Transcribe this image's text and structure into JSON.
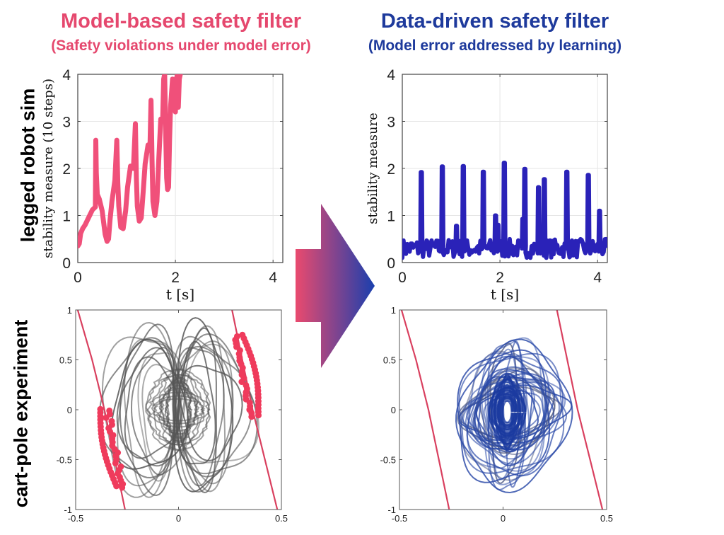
{
  "header": {
    "left_title": "Model-based safety filter",
    "left_subtitle": "(Safety violations under model error)",
    "right_title": "Data-driven safety filter",
    "right_subtitle": "(Model error addressed by learning)"
  },
  "row_labels": {
    "top": "legged robot sim",
    "bottom": "cart-pole experiment"
  },
  "colors": {
    "model_based": "#e5486e",
    "data_driven": "#1e3a9c",
    "blue_line": "#2a22b8",
    "trajectory_gray": "#555555",
    "trajectory_blue": "#2b4aa8",
    "boundary": "#d9405f",
    "violation_marker": "#ef3b5c",
    "arrow_start": "#ea4a6e",
    "arrow_end": "#1a3fae"
  },
  "arrow": {
    "icon": "gradient-right-arrow-icon"
  },
  "chart_data": [
    {
      "id": "legged-model-based",
      "type": "line",
      "title": "",
      "xlabel": "t [s]",
      "ylabel": "stability measure (10 steps)",
      "xlim": [
        0,
        4.2
      ],
      "ylim": [
        0,
        4
      ],
      "xticks": [
        0,
        2,
        4
      ],
      "yticks": [
        0,
        1,
        2,
        3,
        4
      ],
      "grid": true,
      "series": [
        {
          "name": "model-based",
          "x": [
            0.0,
            0.03,
            0.06,
            0.1,
            0.15,
            0.22,
            0.3,
            0.36,
            0.37,
            0.38,
            0.4,
            0.44,
            0.5,
            0.56,
            0.6,
            0.63,
            0.66,
            0.7,
            0.76,
            0.8,
            0.82,
            0.84,
            0.88,
            0.93,
            0.98,
            1.02,
            1.08,
            1.14,
            1.18,
            1.2,
            1.22,
            1.26,
            1.3,
            1.34,
            1.38,
            1.44,
            1.48,
            1.5,
            1.52,
            1.54,
            1.58,
            1.62,
            1.66,
            1.7,
            1.74,
            1.76,
            1.78,
            1.8,
            1.82,
            1.84,
            1.86,
            1.88,
            1.9,
            1.94,
            1.97,
            2.0,
            2.02,
            2.04,
            2.06,
            2.08,
            2.1
          ],
          "y": [
            0.35,
            0.4,
            0.62,
            0.72,
            0.8,
            0.95,
            1.12,
            1.18,
            2.6,
            1.9,
            1.45,
            1.35,
            1.1,
            0.6,
            0.45,
            0.5,
            0.9,
            1.3,
            1.75,
            2.6,
            1.7,
            1.2,
            0.75,
            0.72,
            1.1,
            1.6,
            2.05,
            2.0,
            2.95,
            1.8,
            1.2,
            0.88,
            0.95,
            1.5,
            2.1,
            2.5,
            2.5,
            3.45,
            2.2,
            1.3,
            1.0,
            1.3,
            2.2,
            3.05,
            3.05,
            3.9,
            4.0,
            2.8,
            1.8,
            1.55,
            1.6,
            2.6,
            3.3,
            3.9,
            3.3,
            3.2,
            3.9,
            4.0,
            3.3,
            3.9,
            4.0
          ]
        }
      ]
    },
    {
      "id": "legged-data-driven",
      "type": "line",
      "title": "",
      "xlabel": "t [s]",
      "ylabel": "stability measure",
      "xlim": [
        0,
        4.2
      ],
      "ylim": [
        0,
        4
      ],
      "xticks": [
        0,
        2,
        4
      ],
      "yticks": [
        0,
        1,
        2,
        3,
        4
      ],
      "grid": true,
      "spikes": [
        {
          "t": 0.38,
          "peak": 1.92
        },
        {
          "t": 0.81,
          "peak": 2.04
        },
        {
          "t": 1.1,
          "peak": 0.78
        },
        {
          "t": 1.24,
          "peak": 2.05
        },
        {
          "t": 1.65,
          "peak": 1.93
        },
        {
          "t": 1.9,
          "peak": 1.0
        },
        {
          "t": 1.95,
          "peak": 0.8
        },
        {
          "t": 2.08,
          "peak": 2.12
        },
        {
          "t": 2.46,
          "peak": 0.93
        },
        {
          "t": 2.5,
          "peak": 1.99
        },
        {
          "t": 2.78,
          "peak": 1.6
        },
        {
          "t": 2.85,
          "peak": 0.75
        },
        {
          "t": 2.9,
          "peak": 1.77
        },
        {
          "t": 3.36,
          "peak": 1.93
        },
        {
          "t": 3.8,
          "peak": 1.86
        },
        {
          "t": 4.03,
          "peak": 1.1
        }
      ],
      "baseline_range": [
        0.05,
        0.55
      ]
    },
    {
      "id": "cartpole-model-based",
      "type": "line",
      "title": "",
      "xlabel": "",
      "ylabel": "",
      "xlim": [
        -0.5,
        0.5
      ],
      "ylim": [
        -1,
        1
      ],
      "xticks": [
        -0.5,
        0,
        0.5
      ],
      "yticks": [
        -1,
        -0.5,
        0,
        0.5,
        1
      ],
      "xtick_labels": [
        "-0.5",
        "0",
        "0.5"
      ],
      "ytick_labels": [
        "-1",
        "-0.5",
        "0",
        "0.5",
        "1"
      ],
      "grid": false,
      "boundaries": [
        {
          "x": [
            -0.49,
            -0.42,
            -0.36,
            -0.31,
            -0.26
          ],
          "y": [
            1.0,
            0.5,
            0.0,
            -0.5,
            -1.0
          ]
        },
        {
          "x": [
            0.26,
            0.31,
            0.36,
            0.42,
            0.48
          ],
          "y": [
            1.0,
            0.5,
            0.0,
            -0.5,
            -1.0
          ]
        }
      ],
      "trajectory_style": "gray butterfly-shaped orbits crossing the boundaries",
      "violation_clusters": [
        {
          "side": "left",
          "y_range": [
            -0.78,
            0.0
          ]
        },
        {
          "side": "right",
          "y_range": [
            -0.07,
            0.77
          ]
        }
      ]
    },
    {
      "id": "cartpole-data-driven",
      "type": "line",
      "title": "",
      "xlabel": "",
      "ylabel": "",
      "xlim": [
        -0.5,
        0.5
      ],
      "ylim": [
        -1,
        1
      ],
      "xticks": [
        -0.5,
        0,
        0.5
      ],
      "yticks": [
        -1,
        -0.5,
        0,
        0.5,
        1
      ],
      "xtick_labels": [
        "-0.5",
        "0",
        "0.5"
      ],
      "ytick_labels": [
        "-1",
        "-0.5",
        "0",
        "0.5",
        "1"
      ],
      "grid": false,
      "boundaries": [
        {
          "x": [
            -0.49,
            -0.42,
            -0.36,
            -0.31,
            -0.26
          ],
          "y": [
            1.0,
            0.5,
            0.0,
            -0.5,
            -1.0
          ]
        },
        {
          "x": [
            0.26,
            0.31,
            0.36,
            0.42,
            0.48
          ],
          "y": [
            1.0,
            0.5,
            0.0,
            -0.5,
            -1.0
          ]
        }
      ],
      "trajectory_style": "blue orbits centered near origin, staying within boundaries",
      "orbit_extent": {
        "x": [
          -0.23,
          0.32
        ],
        "y": [
          -0.82,
          0.78
        ]
      }
    }
  ]
}
